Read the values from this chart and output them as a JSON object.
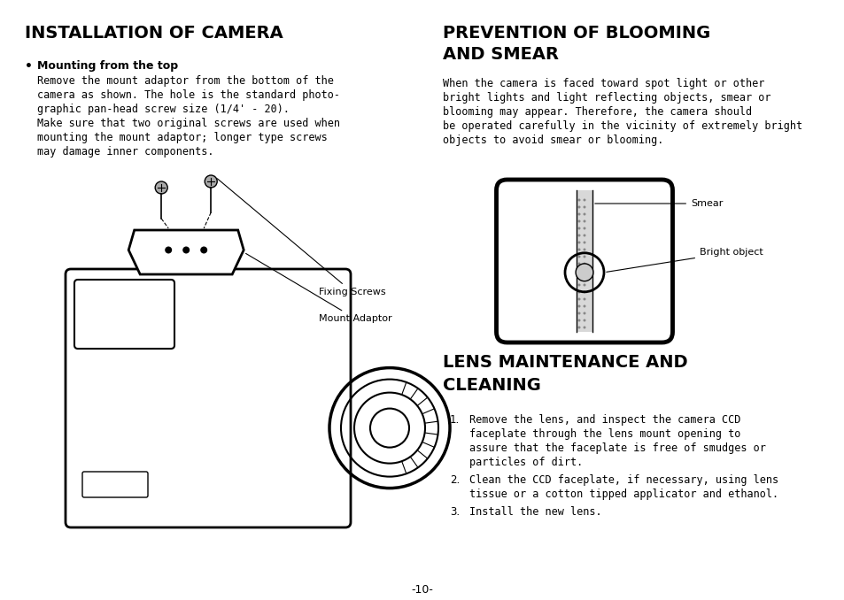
{
  "bg_color": "#ffffff",
  "page_width": 9.54,
  "page_height": 6.78,
  "title_left": "INSTALLATION OF CAMERA",
  "title_right1": "PREVENTION OF BLOOMING",
  "title_right2": "AND SMEAR",
  "title_lens1": "LENS MAINTENANCE AND",
  "title_lens2": "CLEANING",
  "bullet_head": "Mounting from the top",
  "label_fixing": "Fixing Screws",
  "label_mount": "Mount Adaptor",
  "label_smear": "Smear",
  "label_bright": "Bright object",
  "lens_item1_lines": [
    "Remove the lens, and inspect the camera CCD",
    "faceplate through the lens mount opening to",
    "assure that the faceplate is free of smudges or",
    "particles of dirt."
  ],
  "lens_item2_lines": [
    "Clean the CCD faceplate, if necessary, using lens",
    "tissue or a cotton tipped applicator and ethanol."
  ],
  "lens_item3_lines": [
    "Install the new lens."
  ],
  "para_left_lines": [
    "Remove the mount adaptor from the bottom of the",
    "camera as shown. The hole is the standard photo-",
    "graphic pan-head screw size (1/4' - 20).",
    "Make sure that two original screws are used when",
    "mounting the mount adaptor; longer type screws",
    "may damage inner components."
  ],
  "para_bloom_lines": [
    "When the camera is faced toward spot light or other",
    "bright lights and light reflecting objects, smear or",
    "blooming may appear. Therefore, the camera should",
    "be operated carefully in the vicinity of extremely bright",
    "objects to avoid smear or blooming."
  ],
  "page_num": "-10-"
}
